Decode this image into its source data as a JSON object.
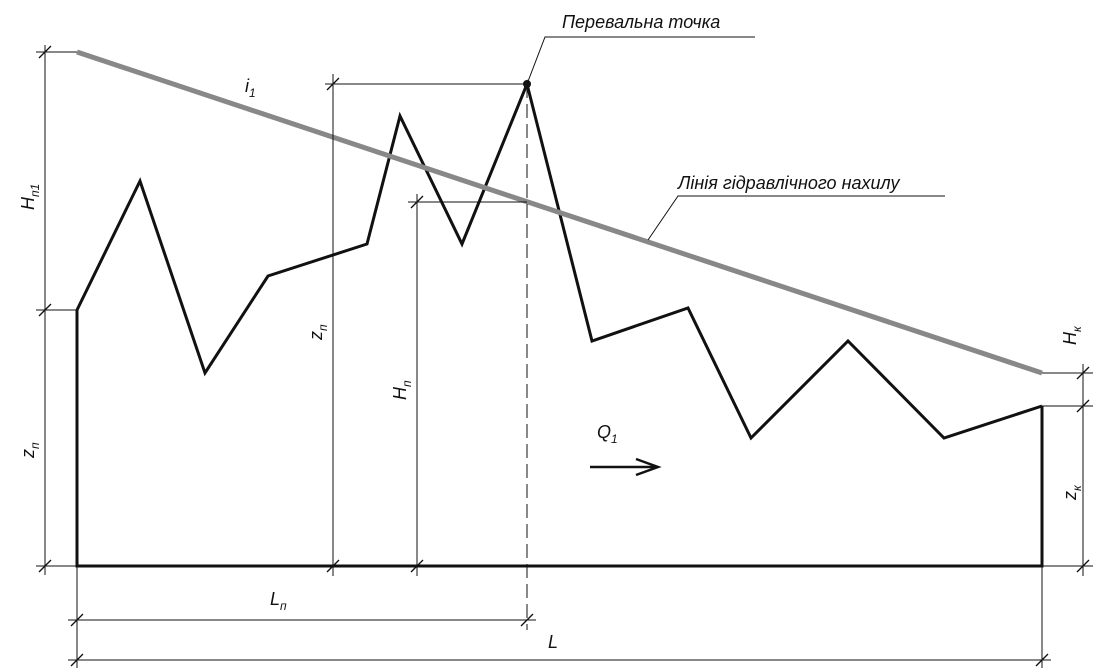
{
  "labels": {
    "pass_point": "Перевальна точка",
    "hydraulic_line": "Лінія гідравлічного нахилу",
    "i1": {
      "main": "i",
      "sub": "1"
    },
    "H_p1": {
      "main": "H",
      "sub": "п1"
    },
    "z_p_left": {
      "main": "z",
      "sub": "п"
    },
    "z_p_inner": {
      "main": "z",
      "sub": "п"
    },
    "H_p": {
      "main": "H",
      "sub": "п"
    },
    "Q1": {
      "main": "Q",
      "sub": "1"
    },
    "H_k": {
      "main": "H",
      "sub": "к"
    },
    "z_k": {
      "main": "z",
      "sub": "к"
    },
    "L_p": {
      "main": "L",
      "sub": "п"
    },
    "L": "L"
  }
}
